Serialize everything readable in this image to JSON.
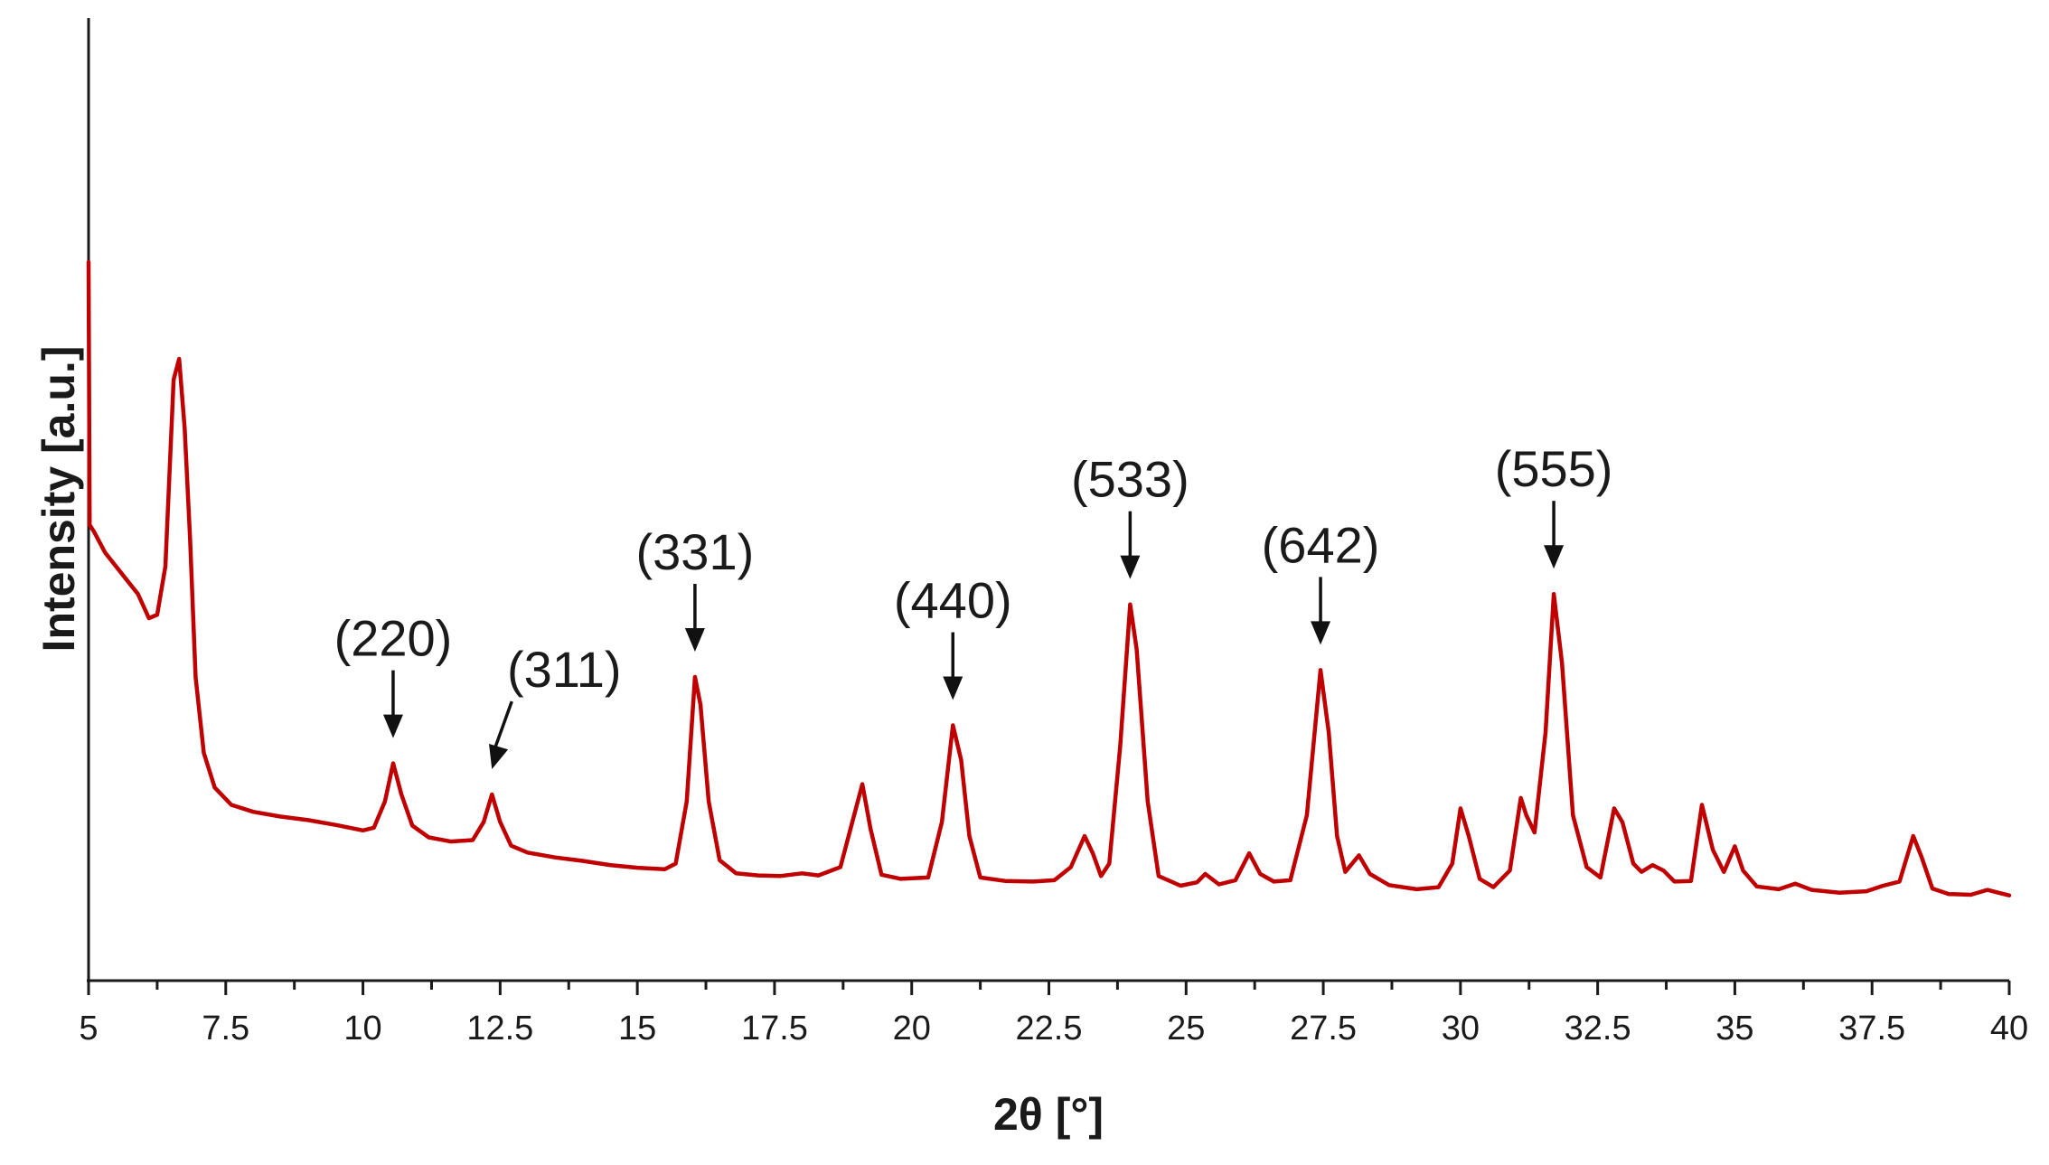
{
  "chart_data": {
    "type": "line",
    "title": "",
    "xlabel": "2θ [°]",
    "ylabel": "Intensity [a.u.]",
    "xlim": [
      5,
      40
    ],
    "ylim": [
      0,
      100
    ],
    "x_ticks": [
      "5",
      "7.5",
      "10",
      "12.5",
      "15",
      "17.5",
      "20",
      "22.5",
      "25",
      "27.5",
      "30",
      "32.5",
      "35",
      "37.5",
      "40"
    ],
    "y_ticks_shown": false,
    "grid": false,
    "legend": "none",
    "series": [
      {
        "color": "#c00000",
        "points": [
          [
            5.0,
            100
          ],
          [
            5.02,
            62
          ],
          [
            5.1,
            61
          ],
          [
            5.3,
            58
          ],
          [
            5.6,
            55
          ],
          [
            5.9,
            52
          ],
          [
            6.1,
            48.5
          ],
          [
            6.25,
            49
          ],
          [
            6.4,
            56
          ],
          [
            6.55,
            83
          ],
          [
            6.65,
            86
          ],
          [
            6.75,
            76
          ],
          [
            6.85,
            60
          ],
          [
            6.95,
            40
          ],
          [
            7.1,
            29
          ],
          [
            7.3,
            24
          ],
          [
            7.6,
            21.5
          ],
          [
            8.0,
            20.5
          ],
          [
            8.5,
            19.8
          ],
          [
            9.0,
            19.3
          ],
          [
            9.5,
            18.6
          ],
          [
            10.0,
            17.8
          ],
          [
            10.2,
            18.2
          ],
          [
            10.4,
            22
          ],
          [
            10.55,
            27.5
          ],
          [
            10.7,
            23
          ],
          [
            10.9,
            18.5
          ],
          [
            11.2,
            16.8
          ],
          [
            11.6,
            16.2
          ],
          [
            12.0,
            16.4
          ],
          [
            12.2,
            19
          ],
          [
            12.35,
            23
          ],
          [
            12.5,
            19
          ],
          [
            12.7,
            15.6
          ],
          [
            13.0,
            14.6
          ],
          [
            13.5,
            13.9
          ],
          [
            14.0,
            13.4
          ],
          [
            14.5,
            12.8
          ],
          [
            15.0,
            12.4
          ],
          [
            15.5,
            12.2
          ],
          [
            15.7,
            13
          ],
          [
            15.9,
            22
          ],
          [
            16.05,
            40
          ],
          [
            16.15,
            36
          ],
          [
            16.3,
            22
          ],
          [
            16.5,
            13.5
          ],
          [
            16.8,
            11.6
          ],
          [
            17.2,
            11.3
          ],
          [
            17.6,
            11.2
          ],
          [
            18.0,
            11.6
          ],
          [
            18.3,
            11.3
          ],
          [
            18.7,
            12.5
          ],
          [
            18.95,
            20
          ],
          [
            19.1,
            24.5
          ],
          [
            19.25,
            18
          ],
          [
            19.45,
            11.4
          ],
          [
            19.8,
            10.8
          ],
          [
            20.3,
            11
          ],
          [
            20.55,
            19
          ],
          [
            20.75,
            33
          ],
          [
            20.9,
            28
          ],
          [
            21.05,
            17
          ],
          [
            21.25,
            11
          ],
          [
            21.7,
            10.5
          ],
          [
            22.2,
            10.4
          ],
          [
            22.6,
            10.6
          ],
          [
            22.9,
            12.5
          ],
          [
            23.15,
            17
          ],
          [
            23.3,
            14.5
          ],
          [
            23.45,
            11.2
          ],
          [
            23.6,
            13
          ],
          [
            23.8,
            30
          ],
          [
            23.98,
            50.5
          ],
          [
            24.1,
            44
          ],
          [
            24.3,
            22
          ],
          [
            24.5,
            11.2
          ],
          [
            24.9,
            9.8
          ],
          [
            25.2,
            10.3
          ],
          [
            25.35,
            11.5
          ],
          [
            25.6,
            10
          ],
          [
            25.9,
            10.6
          ],
          [
            26.15,
            14.5
          ],
          [
            26.35,
            11.5
          ],
          [
            26.6,
            10.4
          ],
          [
            26.9,
            10.6
          ],
          [
            27.2,
            20
          ],
          [
            27.45,
            41
          ],
          [
            27.6,
            32
          ],
          [
            27.75,
            17
          ],
          [
            27.9,
            11.8
          ],
          [
            28.15,
            14.2
          ],
          [
            28.35,
            11.5
          ],
          [
            28.7,
            9.9
          ],
          [
            29.2,
            9.3
          ],
          [
            29.6,
            9.6
          ],
          [
            29.85,
            13
          ],
          [
            30.0,
            21
          ],
          [
            30.15,
            17
          ],
          [
            30.35,
            10.8
          ],
          [
            30.6,
            9.6
          ],
          [
            30.9,
            12
          ],
          [
            31.1,
            22.5
          ],
          [
            31.2,
            20
          ],
          [
            31.35,
            17.5
          ],
          [
            31.55,
            32
          ],
          [
            31.7,
            52
          ],
          [
            31.85,
            42
          ],
          [
            32.05,
            20
          ],
          [
            32.3,
            12.5
          ],
          [
            32.55,
            11
          ],
          [
            32.8,
            21
          ],
          [
            32.95,
            19
          ],
          [
            33.15,
            13
          ],
          [
            33.3,
            11.8
          ],
          [
            33.5,
            12.8
          ],
          [
            33.7,
            12
          ],
          [
            33.9,
            10.4
          ],
          [
            34.2,
            10.5
          ],
          [
            34.4,
            21.5
          ],
          [
            34.6,
            15
          ],
          [
            34.8,
            11.8
          ],
          [
            35.0,
            15.5
          ],
          [
            35.15,
            12
          ],
          [
            35.4,
            9.7
          ],
          [
            35.8,
            9.3
          ],
          [
            36.1,
            10.1
          ],
          [
            36.4,
            9.2
          ],
          [
            36.9,
            8.8
          ],
          [
            37.4,
            9
          ],
          [
            37.7,
            9.8
          ],
          [
            38.0,
            10.4
          ],
          [
            38.25,
            17
          ],
          [
            38.4,
            14
          ],
          [
            38.6,
            9.4
          ],
          [
            38.9,
            8.6
          ],
          [
            39.3,
            8.5
          ],
          [
            39.6,
            9.2
          ],
          [
            39.8,
            8.8
          ],
          [
            40.0,
            8.4
          ]
        ]
      }
    ],
    "annotations": [
      {
        "label": "(220)",
        "x": 10.55,
        "y": 27.5
      },
      {
        "label": "(311)",
        "x": 12.35,
        "y": 23
      },
      {
        "label": "(331)",
        "x": 16.05,
        "y": 40
      },
      {
        "label": "(440)",
        "x": 20.75,
        "y": 33
      },
      {
        "label": "(533)",
        "x": 23.98,
        "y": 50.5
      },
      {
        "label": "(642)",
        "x": 27.45,
        "y": 41
      },
      {
        "label": "(555)",
        "x": 31.7,
        "y": 52
      }
    ]
  }
}
